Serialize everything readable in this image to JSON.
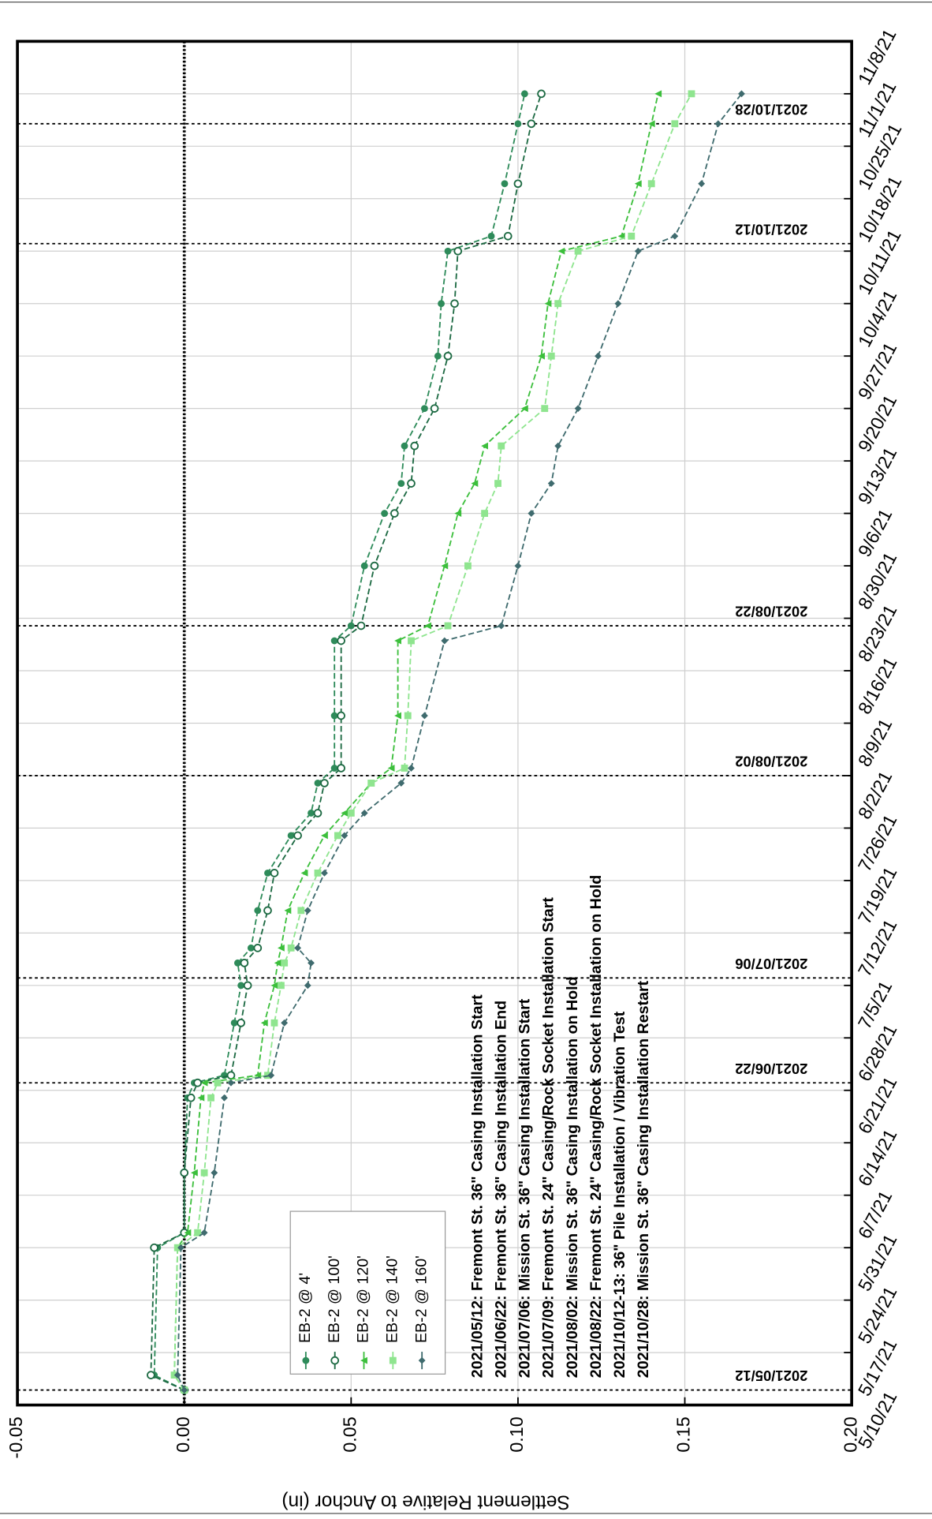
{
  "chart_data": {
    "type": "line",
    "y_label": "Settlement Relative to Anchor (in)",
    "x": [
      "2021-05-12",
      "2021-05-14",
      "2021-05-31",
      "2021-06-02",
      "2021-06-10",
      "2021-06-20",
      "2021-06-22",
      "2021-06-23",
      "2021-06-30",
      "2021-07-05",
      "2021-07-08",
      "2021-07-10",
      "2021-07-15",
      "2021-07-20",
      "2021-07-25",
      "2021-07-28",
      "2021-08-01",
      "2021-08-03",
      "2021-08-10",
      "2021-08-20",
      "2021-08-22",
      "2021-08-30",
      "2021-09-06",
      "2021-09-10",
      "2021-09-15",
      "2021-09-20",
      "2021-09-27",
      "2021-10-04",
      "2021-10-11",
      "2021-10-13",
      "2021-10-20",
      "2021-10-28",
      "2021-11-01"
    ],
    "series": [
      {
        "name": "EB-2 @ 4'",
        "color": "#2e8b5a",
        "marker": "circle",
        "values": [
          0,
          -0.009,
          -0.008,
          0,
          0,
          0.001,
          0.003,
          0.012,
          0.015,
          0.017,
          0.016,
          0.02,
          0.022,
          0.025,
          0.032,
          0.038,
          0.04,
          0.045,
          0.045,
          0.045,
          0.05,
          0.054,
          0.06,
          0.065,
          0.066,
          0.072,
          0.076,
          0.077,
          0.079,
          0.092,
          0.096,
          0.1,
          0.102
        ]
      },
      {
        "name": "EB-2 @ 100'",
        "color": "#1d6a43",
        "marker": "open-circle",
        "values": [
          0,
          -0.01,
          -0.009,
          0,
          0,
          0.002,
          0.004,
          0.014,
          0.017,
          0.019,
          0.018,
          0.022,
          0.025,
          0.027,
          0.034,
          0.04,
          0.042,
          0.047,
          0.047,
          0.047,
          0.053,
          0.057,
          0.063,
          0.068,
          0.069,
          0.075,
          0.079,
          0.081,
          0.082,
          0.097,
          0.1,
          0.104,
          0.107
        ]
      },
      {
        "name": "EB-2 @ 120'",
        "color": "#3cbf3c",
        "marker": "triangle",
        "values": [
          0,
          -0.003,
          -0.002,
          0.001,
          0.003,
          0.005,
          0.006,
          0.022,
          0.024,
          0.027,
          0.028,
          0.029,
          0.031,
          0.036,
          0.042,
          0.048,
          0.056,
          0.062,
          0.064,
          0.064,
          0.073,
          0.078,
          0.082,
          0.087,
          0.09,
          0.102,
          0.107,
          0.109,
          0.113,
          0.131,
          0.136,
          0.14,
          0.142
        ]
      },
      {
        "name": "EB-2 @ 140'",
        "color": "#8fe58f",
        "marker": "square",
        "values": [
          0,
          -0.003,
          -0.002,
          0.004,
          0.006,
          0.008,
          0.01,
          0.025,
          0.027,
          0.029,
          0.03,
          0.032,
          0.035,
          0.04,
          0.046,
          0.05,
          0.056,
          0.066,
          0.067,
          0.068,
          0.079,
          0.085,
          0.09,
          0.094,
          0.095,
          0.108,
          0.11,
          0.112,
          0.118,
          0.134,
          0.14,
          0.147,
          0.152
        ]
      },
      {
        "name": "EB-2 @ 160'",
        "color": "#3f6b6e",
        "marker": "diamond",
        "values": [
          0,
          -0.002,
          -0.001,
          0.006,
          0.009,
          0.012,
          0.014,
          0.026,
          0.03,
          0.037,
          0.038,
          0.034,
          0.037,
          0.042,
          0.048,
          0.054,
          0.065,
          0.068,
          0.072,
          0.078,
          0.095,
          0.1,
          0.104,
          0.11,
          0.112,
          0.118,
          0.124,
          0.13,
          0.136,
          0.147,
          0.155,
          0.16,
          0.167
        ]
      }
    ],
    "ylim": [
      -0.05,
      0.2
    ],
    "yticks": [
      {
        "value": -0.05,
        "label": "-0.05"
      },
      {
        "value": 0,
        "label": "0.00"
      },
      {
        "value": 0.05,
        "label": "0.05"
      },
      {
        "value": 0.1,
        "label": "0.10"
      },
      {
        "value": 0.15,
        "label": "0.15"
      },
      {
        "value": 0.2,
        "label": "0.20"
      }
    ],
    "xlim": [
      "2021-05-10",
      "2021-11-08"
    ],
    "xticks": [
      {
        "value": "2021-05-10",
        "label": "5/10/21"
      },
      {
        "value": "2021-05-17",
        "label": "5/17/21"
      },
      {
        "value": "2021-05-24",
        "label": "5/24/21"
      },
      {
        "value": "2021-05-31",
        "label": "5/31/21"
      },
      {
        "value": "2021-06-07",
        "label": "6/7/21"
      },
      {
        "value": "2021-06-14",
        "label": "6/14/21"
      },
      {
        "value": "2021-06-21",
        "label": "6/21/21"
      },
      {
        "value": "2021-06-28",
        "label": "6/28/21"
      },
      {
        "value": "2021-07-05",
        "label": "7/5/21"
      },
      {
        "value": "2021-07-12",
        "label": "7/12/21"
      },
      {
        "value": "2021-07-19",
        "label": "7/19/21"
      },
      {
        "value": "2021-07-26",
        "label": "7/26/21"
      },
      {
        "value": "2021-08-02",
        "label": "8/2/21"
      },
      {
        "value": "2021-08-09",
        "label": "8/9/21"
      },
      {
        "value": "2021-08-16",
        "label": "8/16/21"
      },
      {
        "value": "2021-08-23",
        "label": "8/23/21"
      },
      {
        "value": "2021-08-30",
        "label": "8/30/21"
      },
      {
        "value": "2021-09-06",
        "label": "9/6/21"
      },
      {
        "value": "2021-09-13",
        "label": "9/13/21"
      },
      {
        "value": "2021-09-20",
        "label": "9/20/21"
      },
      {
        "value": "2021-09-27",
        "label": "9/27/21"
      },
      {
        "value": "2021-10-04",
        "label": "10/4/21"
      },
      {
        "value": "2021-10-11",
        "label": "10/11/21"
      },
      {
        "value": "2021-10-18",
        "label": "10/18/21"
      },
      {
        "value": "2021-10-25",
        "label": "10/25/21"
      },
      {
        "value": "2021-11-01",
        "label": "11/1/21"
      },
      {
        "value": "2021-11-08",
        "label": "11/8/21"
      }
    ],
    "grid": true,
    "reference_line": 0,
    "event_lines": [
      {
        "x": "2021-05-12",
        "label": "2021/05/12"
      },
      {
        "x": "2021-06-22",
        "label": "2021/06/22"
      },
      {
        "x": "2021-07-06",
        "label": "2021/07/06"
      },
      {
        "x": "2021-08-02",
        "label": "2021/08/02"
      },
      {
        "x": "2021-08-22",
        "label": "2021/08/22"
      },
      {
        "x": "2021-10-12",
        "label": "2021/10/12"
      },
      {
        "x": "2021-10-28",
        "label": "2021/10/28"
      }
    ],
    "notes": [
      "2021/05/12: Fremont St. 36\" Casing Installation Start",
      "2021/06/22: Fremont St. 36\" Casing Installation End",
      "2021/07/06: Mission St.  36\" Casing Installation Start",
      "2021/07/09: Fremont St. 24\" Casing/Rock Socket Installation Start",
      "2021/08/02: Mission St.  36\" Casing Installation on Hold",
      "2021/08/22: Fremont St. 24\" Casing/Rock Socket Installation on Hold",
      "2021/10/12-13: 36\" Pile Installation / Vibration Test",
      "2021/10/28: Mission St.  36\" Casing Installation Restart"
    ]
  }
}
